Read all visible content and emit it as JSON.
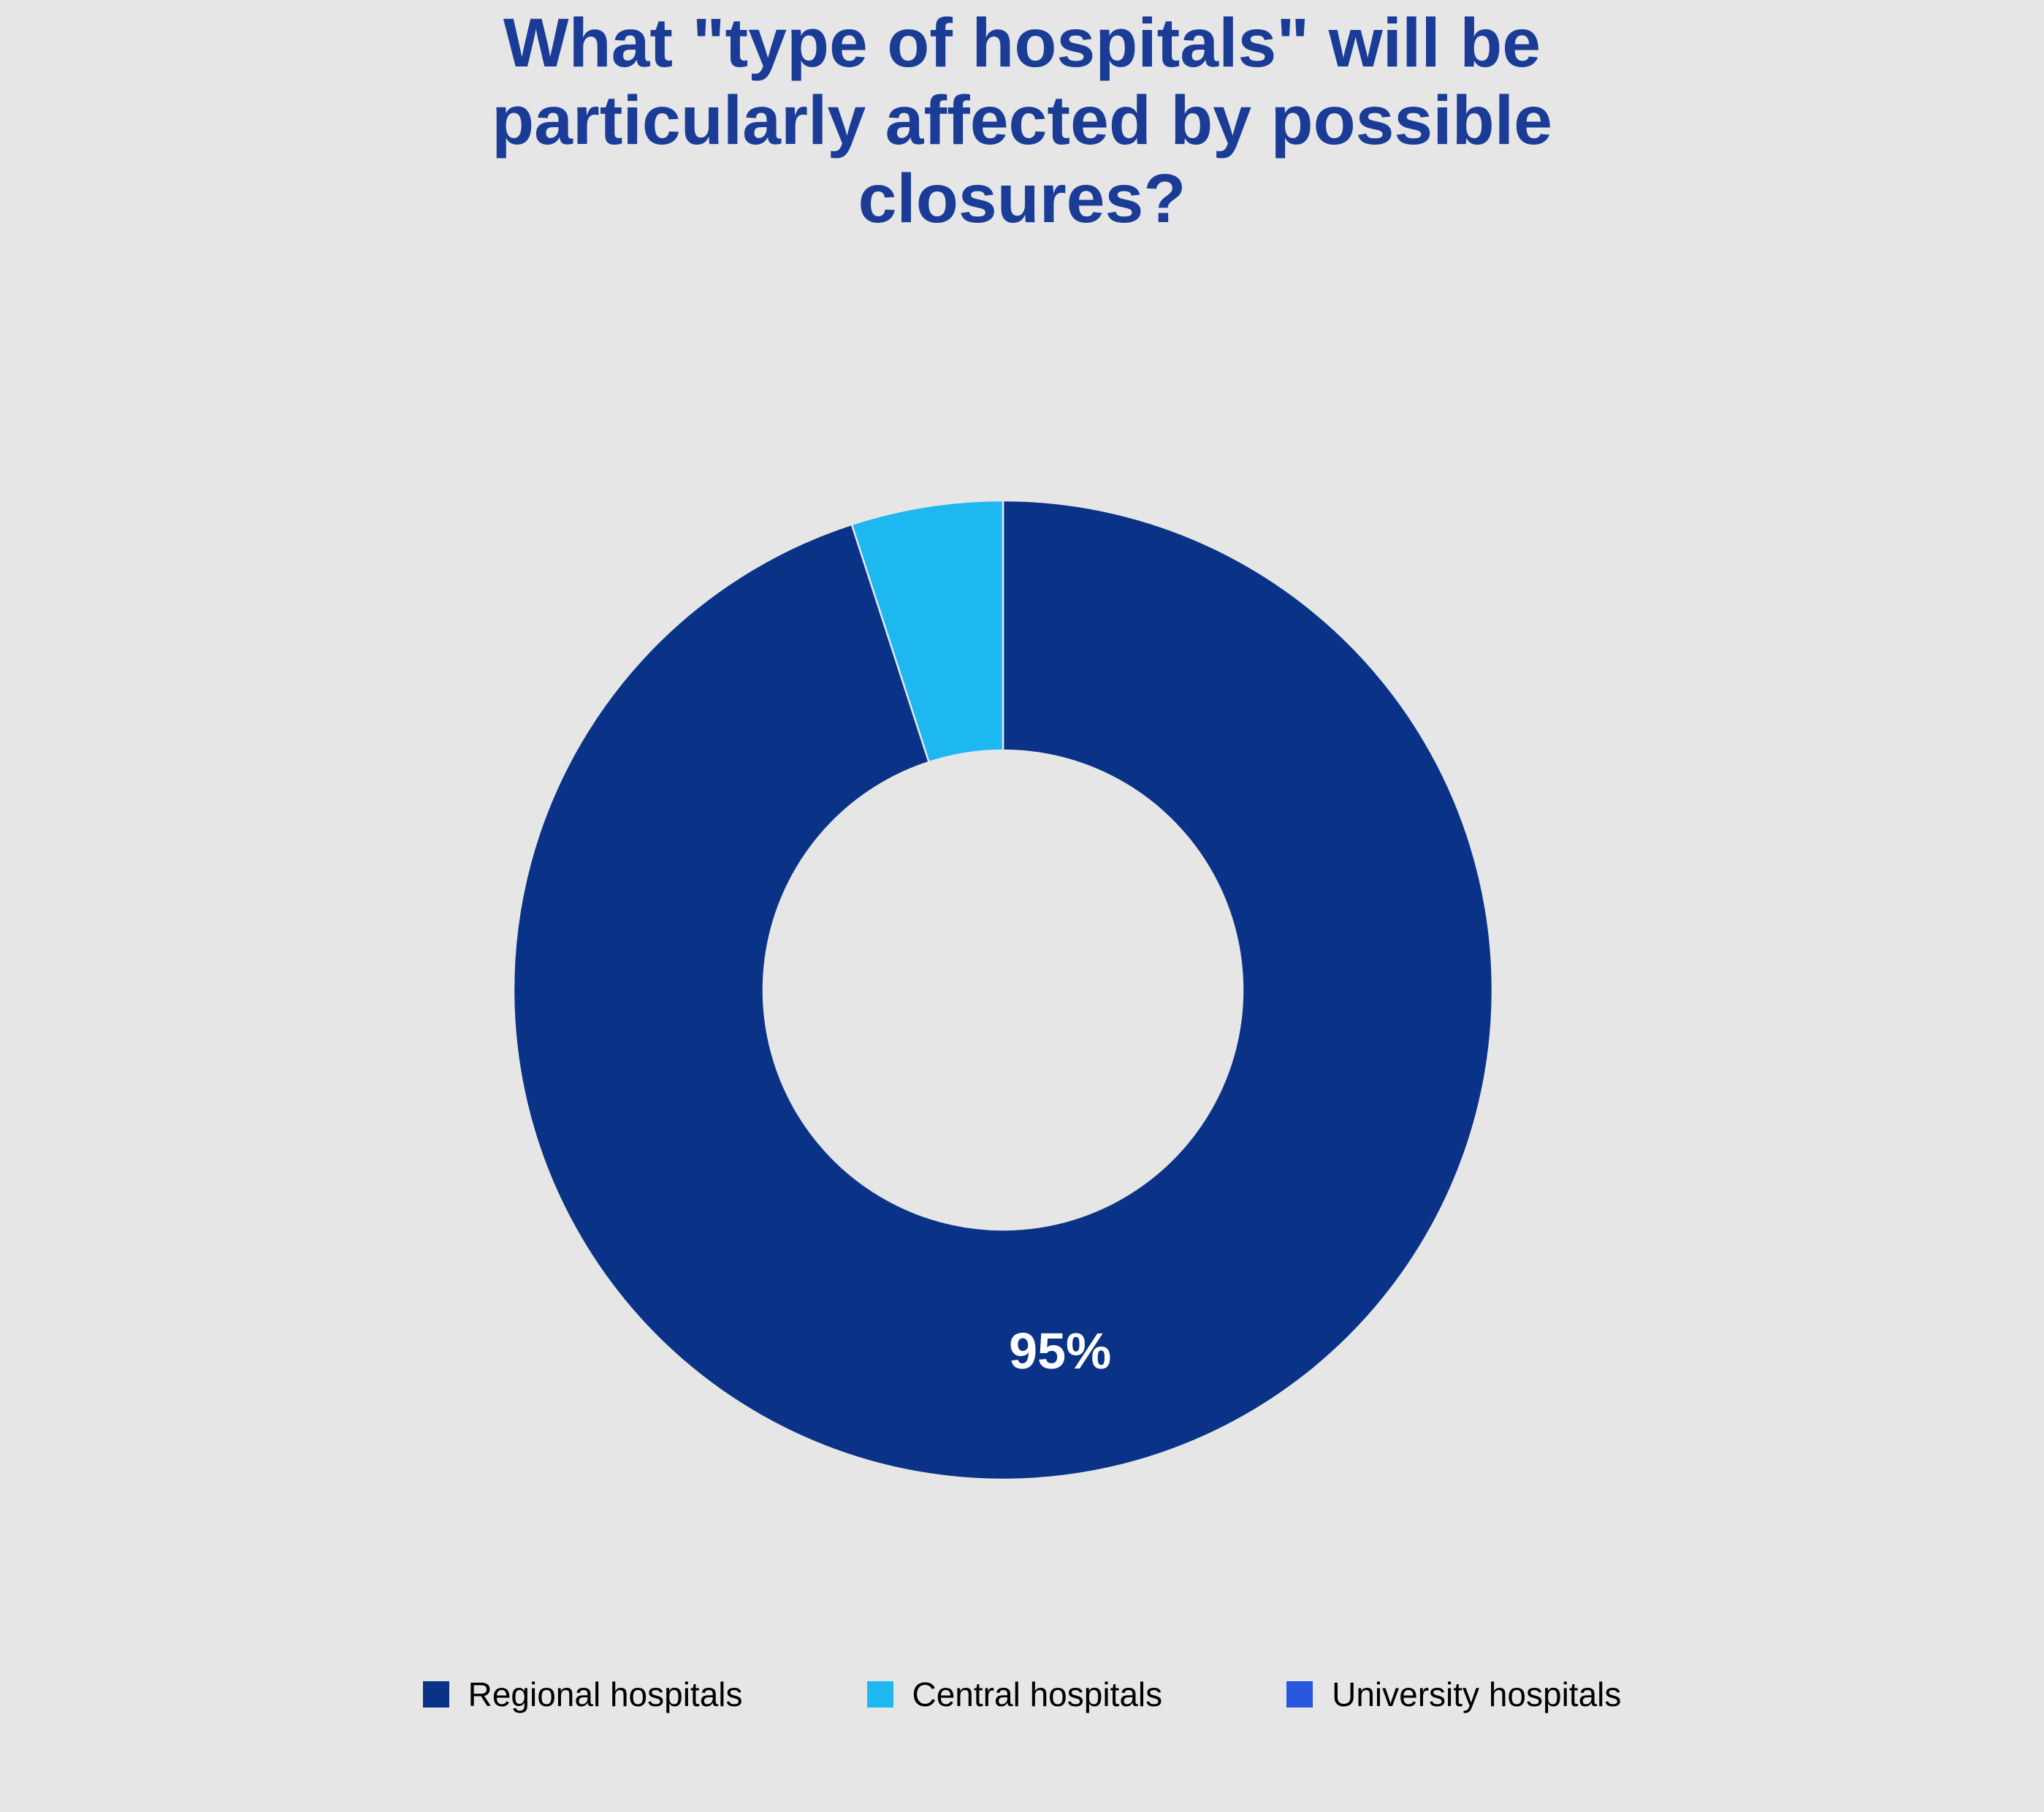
{
  "background": "#e6e6e6",
  "title": {
    "text": "What \"type of hospitals\" will be particularly affected by possible closures?",
    "color": "#1b3c96"
  },
  "chart_data": {
    "type": "pie",
    "subtype": "donut",
    "title": "What \"type of hospitals\" will be particularly affected by possible closures?",
    "categories": [
      "Regional hospitals",
      "Central hospitals",
      "University hospitals"
    ],
    "values": [
      95,
      5,
      0
    ],
    "colors": [
      "#0a3387",
      "#1db8f0",
      "#2857de"
    ],
    "labels": [
      "95%",
      "",
      ""
    ],
    "label_color": "#ffffff",
    "start_angle_deg": 0,
    "direction": "clockwise",
    "inner_radius_ratio": 0.49,
    "legend_position": "bottom",
    "grid": false
  },
  "legend": {
    "items": [
      {
        "label": "Regional hospitals",
        "color": "#0a3387"
      },
      {
        "label": "Central hospitals",
        "color": "#1db8f0"
      },
      {
        "label": "University hospitals",
        "color": "#2857de"
      }
    ]
  }
}
